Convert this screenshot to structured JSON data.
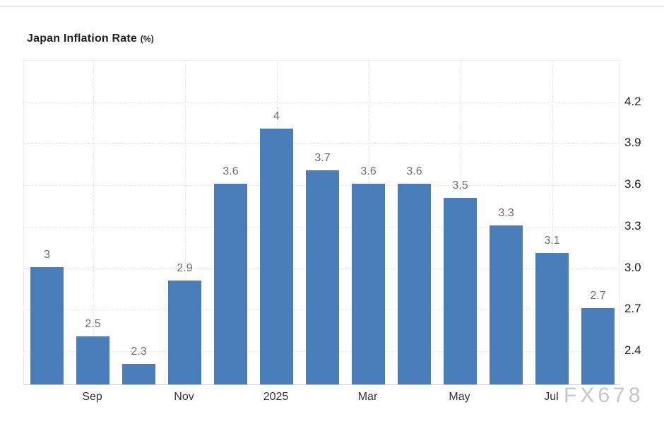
{
  "title": {
    "main": "Japan Inflation Rate",
    "unit": "(%)"
  },
  "watermark": "FX678",
  "colors": {
    "bar": "#4a7ebb",
    "grid": "#e4e4e4",
    "value_label": "#6e6e6e",
    "axis_label": "#333333",
    "watermark": "#c3c7cc"
  },
  "chart_data": {
    "type": "bar",
    "title": "Japan Inflation Rate (%)",
    "values": [
      3,
      2.5,
      2.3,
      2.9,
      3.6,
      4,
      3.7,
      3.6,
      3.6,
      3.5,
      3.3,
      3.1,
      2.7
    ],
    "value_labels": [
      "3",
      "2.5",
      "2.3",
      "2.9",
      "3.6",
      "4",
      "3.7",
      "3.6",
      "3.6",
      "3.5",
      "3.3",
      "3.1",
      "2.7"
    ],
    "x_tick_labels": [
      "Sep",
      "Nov",
      "2025",
      "Mar",
      "May",
      "Jul"
    ],
    "x_tick_positions": [
      1,
      3,
      5,
      7,
      9,
      11
    ],
    "y_ticks": [
      2.4,
      2.7,
      3.0,
      3.3,
      3.6,
      3.9,
      4.2
    ],
    "y_tick_labels": [
      "2.4",
      "2.7",
      "3.0",
      "3.3",
      "3.6",
      "3.9",
      "4.2"
    ],
    "ylim": [
      2.15,
      4.5
    ],
    "xlabel": "",
    "ylabel": "",
    "grid": true,
    "legend": "none"
  }
}
